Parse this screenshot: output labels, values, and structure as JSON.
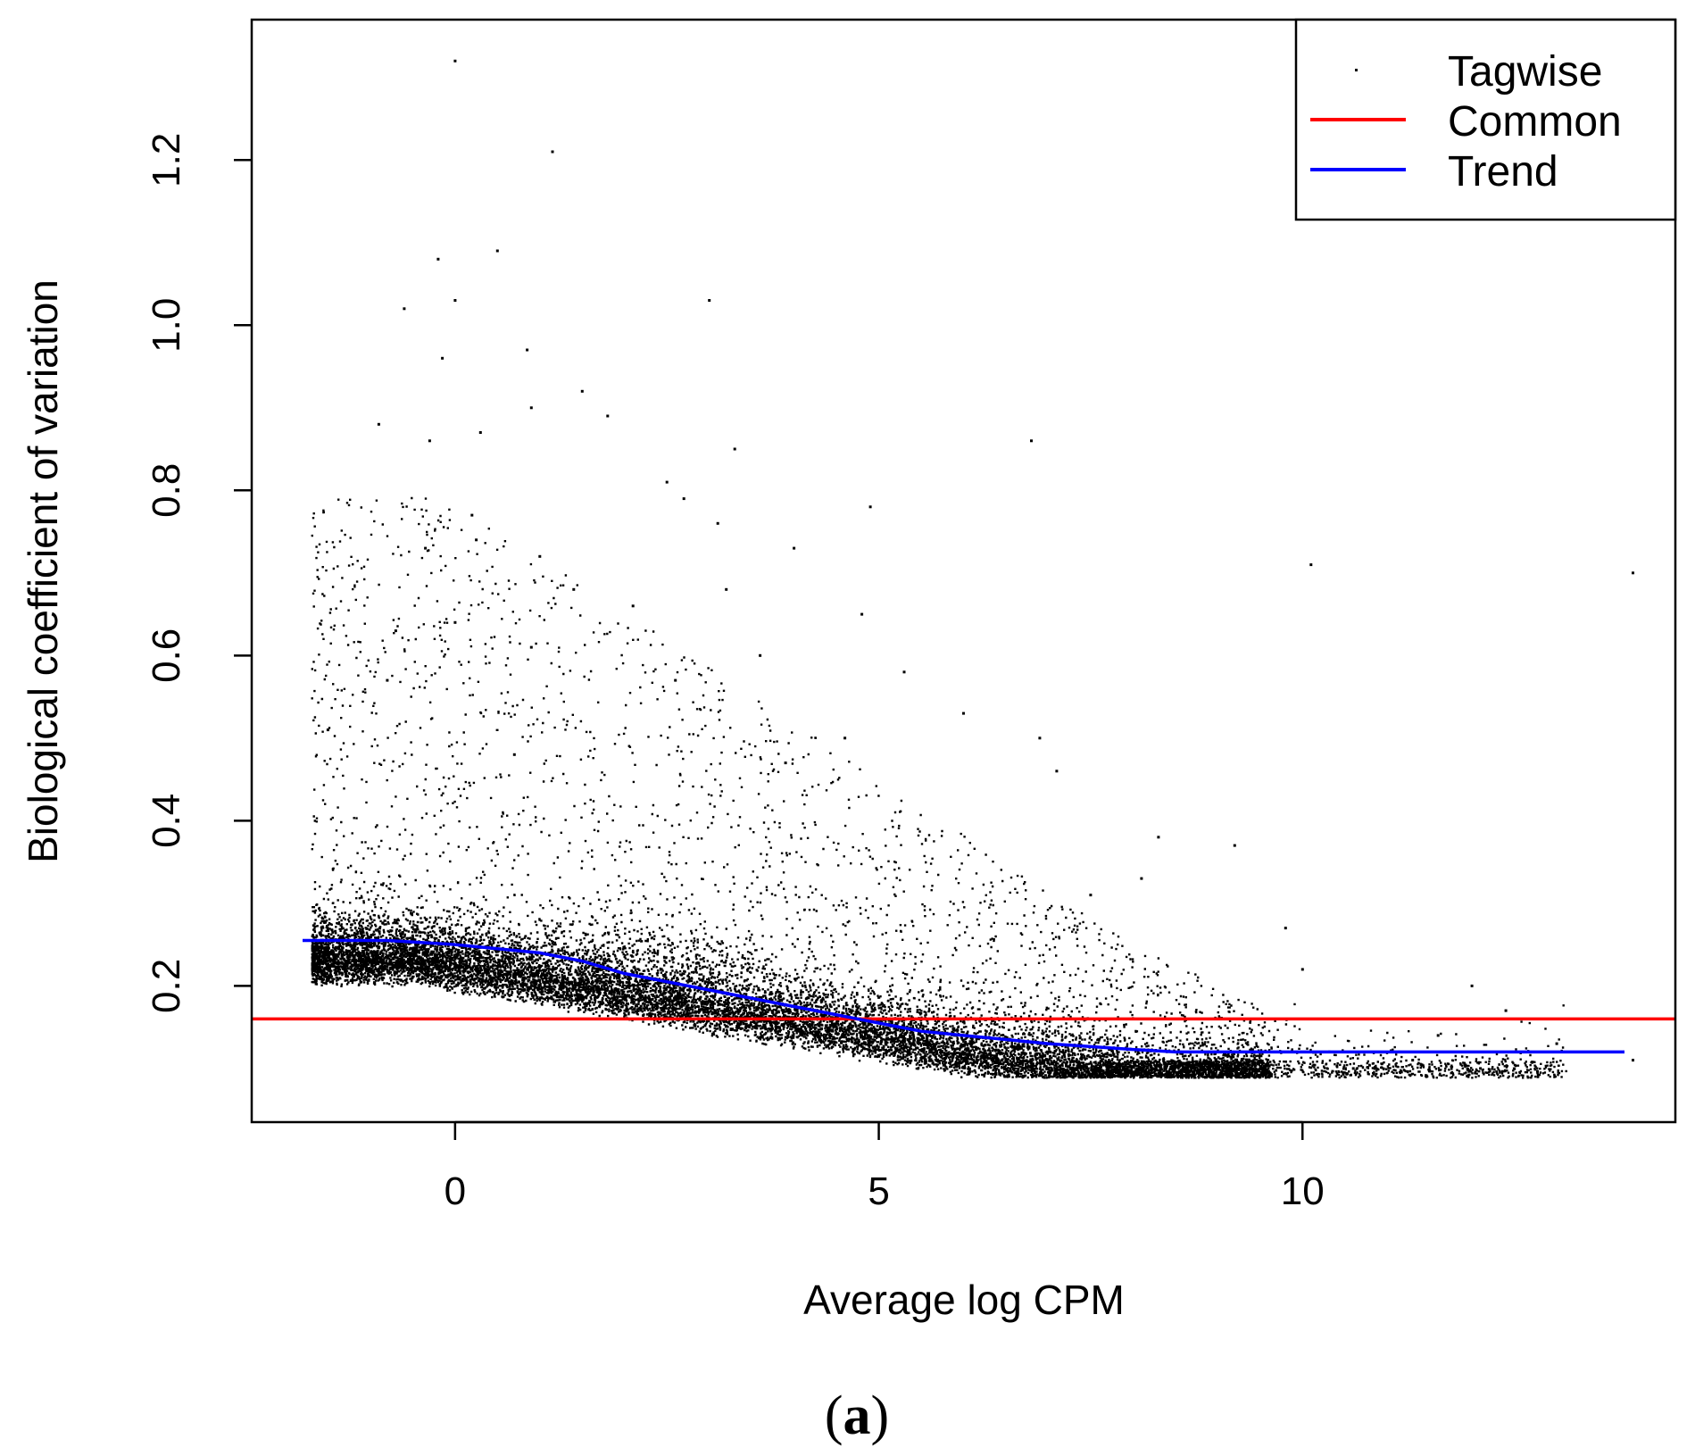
{
  "chart_data": {
    "type": "scatter",
    "title": "",
    "xlabel": "Average log CPM",
    "ylabel": "Biological coefficient of variation",
    "xlim": [
      -2.4,
      14.4
    ],
    "ylim": [
      0.035,
      1.37
    ],
    "x_ticks": [
      0,
      5,
      10
    ],
    "x_tick_labels": [
      "0",
      "5",
      "10"
    ],
    "y_ticks": [
      0.2,
      0.4,
      0.6,
      0.8,
      1.0,
      1.2
    ],
    "y_tick_labels": [
      "0.2",
      "0.4",
      "0.6",
      "0.8",
      "1.0",
      "1.2"
    ],
    "grid": false,
    "legend": {
      "position": "top-right",
      "entries": [
        {
          "label": "Tagwise",
          "marker": "point",
          "color": "#000000"
        },
        {
          "label": "Common",
          "marker": "line",
          "color": "#ff0000"
        },
        {
          "label": "Trend",
          "marker": "line",
          "color": "#0000ff"
        }
      ]
    },
    "series": [
      {
        "name": "Tagwise",
        "kind": "points",
        "color": "#000000",
        "points": [
          [
            0.0,
            1.32
          ],
          [
            1.15,
            1.21
          ],
          [
            0.5,
            1.09
          ],
          [
            -0.2,
            1.08
          ],
          [
            0.0,
            1.03
          ],
          [
            3.0,
            1.03
          ],
          [
            -0.6,
            1.02
          ],
          [
            0.85,
            0.97
          ],
          [
            -0.15,
            0.96
          ],
          [
            0.9,
            0.9
          ],
          [
            1.5,
            0.92
          ],
          [
            -0.9,
            0.88
          ],
          [
            1.8,
            0.89
          ],
          [
            0.3,
            0.87
          ],
          [
            6.8,
            0.86
          ],
          [
            3.3,
            0.85
          ],
          [
            -0.3,
            0.86
          ],
          [
            2.5,
            0.81
          ],
          [
            2.7,
            0.79
          ],
          [
            4.9,
            0.78
          ],
          [
            0.2,
            0.77
          ],
          [
            3.1,
            0.76
          ],
          [
            0.25,
            0.74
          ],
          [
            4.0,
            0.73
          ],
          [
            1.0,
            0.72
          ],
          [
            -0.35,
            0.73
          ],
          [
            13.9,
            0.7
          ],
          [
            10.1,
            0.71
          ],
          [
            1.4,
            0.68
          ],
          [
            3.2,
            0.68
          ],
          [
            2.1,
            0.66
          ],
          [
            4.8,
            0.65
          ],
          [
            0.0,
            0.64
          ],
          [
            -0.7,
            0.63
          ],
          [
            3.6,
            0.6
          ],
          [
            0.9,
            0.61
          ],
          [
            5.3,
            0.58
          ],
          [
            2.6,
            0.57
          ],
          [
            -0.8,
            0.57
          ],
          [
            6.0,
            0.53
          ],
          [
            4.6,
            0.5
          ],
          [
            6.9,
            0.5
          ],
          [
            0.7,
            0.48
          ],
          [
            7.1,
            0.46
          ],
          [
            3.9,
            0.47
          ],
          [
            -1.5,
            0.51
          ],
          [
            8.3,
            0.38
          ],
          [
            9.2,
            0.37
          ],
          [
            8.1,
            0.33
          ],
          [
            7.5,
            0.31
          ],
          [
            9.8,
            0.27
          ],
          [
            10.0,
            0.22
          ],
          [
            12.0,
            0.2
          ],
          [
            12.4,
            0.17
          ],
          [
            11.6,
            0.14
          ],
          [
            13.0,
            0.13
          ],
          [
            13.9,
            0.11
          ],
          [
            10.6,
            0.1
          ],
          [
            11.3,
            0.11
          ],
          [
            12.1,
            0.1
          ]
        ]
      },
      {
        "name": "Common",
        "kind": "hline",
        "color": "#ff0000",
        "y": 0.16
      },
      {
        "name": "Trend",
        "kind": "line",
        "color": "#0000ff",
        "x": [
          -1.8,
          -0.8,
          0.0,
          0.5,
          1.0,
          1.5,
          2.0,
          3.0,
          4.0,
          5.0,
          5.5,
          6.0,
          7.0,
          8.0,
          8.5,
          9.0,
          10.0,
          11.0,
          12.0,
          13.0,
          13.8
        ],
        "y": [
          0.255,
          0.255,
          0.25,
          0.245,
          0.24,
          0.23,
          0.215,
          0.195,
          0.175,
          0.155,
          0.145,
          0.14,
          0.13,
          0.123,
          0.12,
          0.12,
          0.12,
          0.12,
          0.12,
          0.12,
          0.12
        ]
      }
    ]
  },
  "panel_label": {
    "open": "(",
    "letter": "a",
    "close": ")"
  }
}
